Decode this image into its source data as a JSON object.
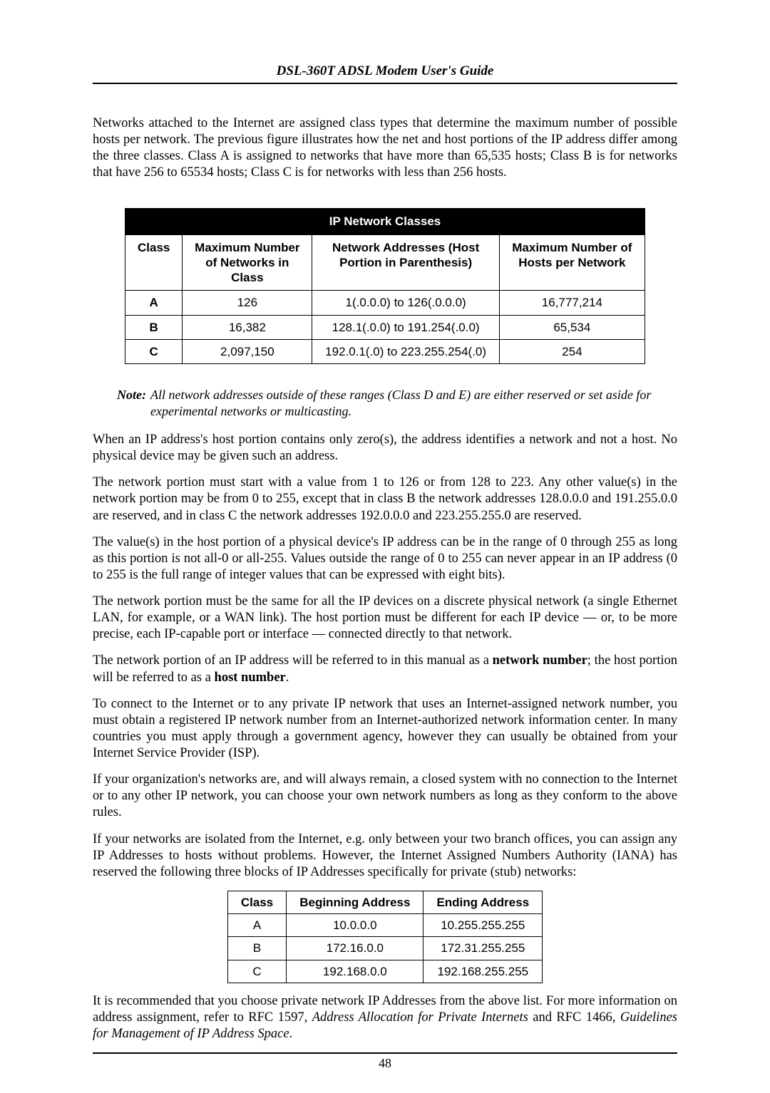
{
  "header": {
    "title": "DSL-360T ADSL Modem User's Guide"
  },
  "intro_para": "Networks attached to the Internet are assigned class types that determine the maximum number of possible hosts per network. The previous figure illustrates how the net and host portions of the IP address differ among the three classes. Class A is assigned to networks that have more than 65,535 hosts; Class B is for networks that have 256 to 65534 hosts; Class C is for networks with less than 256 hosts.",
  "table1": {
    "title": "IP Network Classes",
    "headers": {
      "class": "Class",
      "max_networks": "Maximum Number of Networks in Class",
      "net_addresses": "Network Addresses (Host Portion in Parenthesis)",
      "max_hosts": "Maximum Number of Hosts per Network"
    },
    "rows": [
      {
        "class": "A",
        "max_networks": "126",
        "net_addresses": "1(.0.0.0) to 126(.0.0.0)",
        "max_hosts": "16,777,214"
      },
      {
        "class": "B",
        "max_networks": "16,382",
        "net_addresses": "128.1(.0.0) to 191.254(.0.0)",
        "max_hosts": "65,534"
      },
      {
        "class": "C",
        "max_networks": "2,097,150",
        "net_addresses": "192.0.1(.0) to 223.255.254(.0)",
        "max_hosts": "254"
      }
    ]
  },
  "note": {
    "label": "Note:",
    "text": "All network addresses outside of these ranges (Class D and E) are either reserved or set aside for experimental networks or multicasting."
  },
  "paras": {
    "p1": "When an IP address's host portion contains only zero(s), the address identifies a network and not a host. No physical device may be given such an address.",
    "p2": "The network portion must start with a value from 1 to 126 or from 128 to 223. Any other value(s) in the network portion may be from 0 to 255, except that in class B the network addresses 128.0.0.0 and 191.255.0.0 are reserved, and in class C the network addresses 192.0.0.0 and 223.255.255.0 are reserved.",
    "p3": "The value(s) in the host portion of a physical device's IP address can be in the range of 0 through 255 as long as this portion is not all-0 or all-255. Values outside the range of 0 to 255 can never appear in an IP address (0 to 255 is the full range of integer values that can be expressed with eight bits).",
    "p4": "The network portion must be the same for all the IP devices on a discrete physical network (a single Ethernet LAN, for example, or a WAN link). The host portion must be different for each IP device — or, to be more precise, each IP-capable port or interface — connected directly to that network.",
    "p5_a": "The network portion of an IP address will be referred to in this manual as a ",
    "p5_b1": "network number",
    "p5_c": "; the host portion will be referred to as a ",
    "p5_b2": "host number",
    "p5_d": ".",
    "p6": "To connect to the Internet or to any private IP network that uses an Internet-assigned network number, you must obtain a registered IP network number from an Internet-authorized network information center. In many countries you must apply through a government agency, however they can usually be obtained from your Internet Service Provider (ISP).",
    "p7": "If your organization's networks are, and will always remain, a closed system with no connection to the Internet or to any other IP network, you can choose your own network numbers as long as they conform to the above rules.",
    "p8": "If your networks are isolated from the Internet, e.g. only between your two branch offices, you can assign any IP Addresses to hosts without problems. However, the Internet Assigned Numbers Authority (IANA) has reserved the following three blocks of IP Addresses specifically for private (stub) networks:"
  },
  "table2": {
    "headers": {
      "class": "Class",
      "begin": "Beginning Address",
      "end": "Ending Address"
    },
    "rows": [
      {
        "class": "A",
        "begin": "10.0.0.0",
        "end": "10.255.255.255"
      },
      {
        "class": "B",
        "begin": "172.16.0.0",
        "end": "172.31.255.255"
      },
      {
        "class": "C",
        "begin": "192.168.0.0",
        "end": "192.168.255.255"
      }
    ]
  },
  "closing": {
    "a": "It is recommended that you choose private network IP Addresses from the above list. For more information on address assignment, refer to RFC 1597, ",
    "i1": "Address Allocation for Private Internets",
    "b": " and RFC 1466, ",
    "i2": "Guidelines for Management of IP Address Space",
    "c": "."
  },
  "page_number": "48",
  "colors": {
    "text": "#000000",
    "background": "#ffffff",
    "table_header_bg": "#000000",
    "table_header_fg": "#ffffff",
    "rule": "#000000"
  },
  "typography": {
    "body_font": "Times New Roman",
    "table_font": "Arial",
    "body_size_pt": 14,
    "header_size_pt": 14,
    "table_size_pt": 13
  }
}
